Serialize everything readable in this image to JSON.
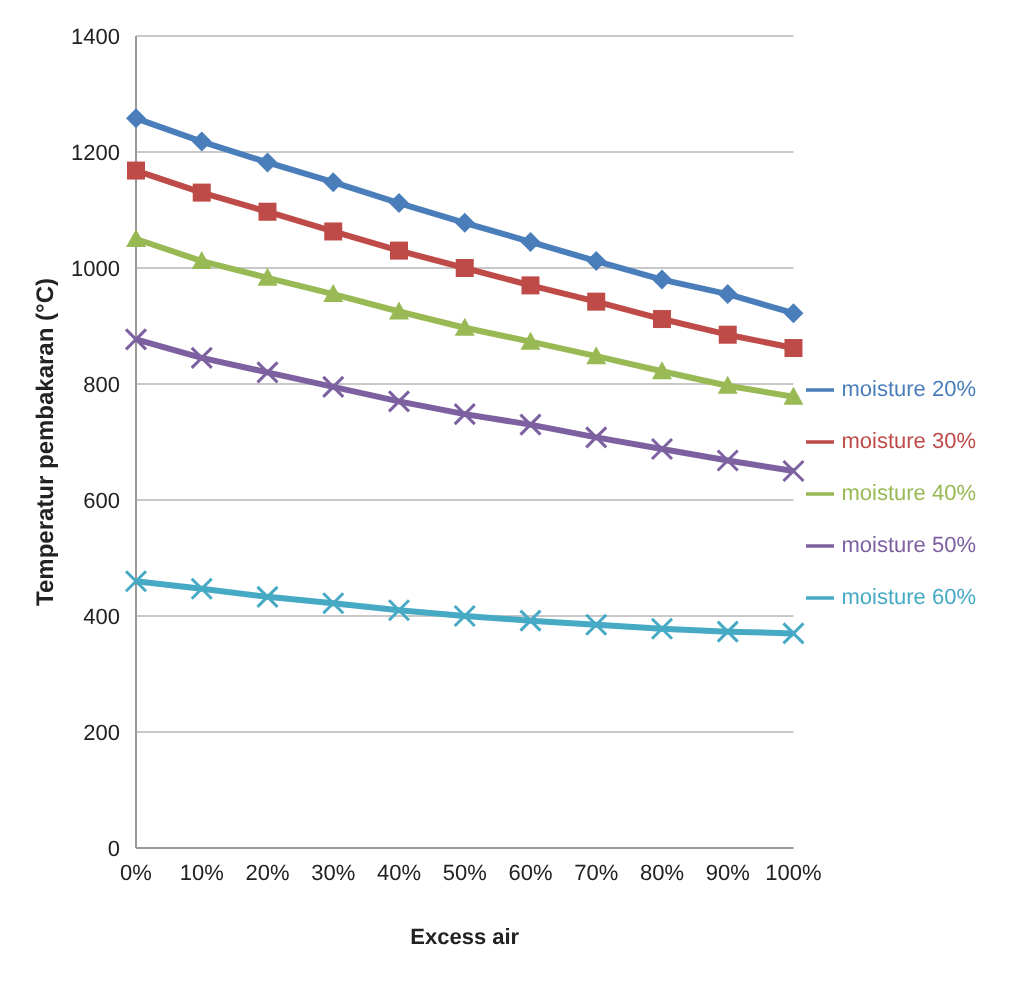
{
  "chart_data": {
    "type": "line",
    "xlabel": "Excess air",
    "ylabel": "Temperatur pembakaran (°C)",
    "categories": [
      "0%",
      "10%",
      "20%",
      "30%",
      "40%",
      "50%",
      "60%",
      "70%",
      "80%",
      "90%",
      "100%"
    ],
    "series": [
      {
        "name": "moisture 20%",
        "color": "#4a7ebb",
        "marker": "diamond",
        "values": [
          1258,
          1218,
          1182,
          1148,
          1112,
          1078,
          1045,
          1012,
          980,
          955,
          922
        ]
      },
      {
        "name": "moisture 30%",
        "color": "#be4b48",
        "marker": "square",
        "values": [
          1168,
          1130,
          1097,
          1063,
          1030,
          1000,
          970,
          942,
          912,
          885,
          862
        ]
      },
      {
        "name": "moisture 40%",
        "color": "#98b954",
        "marker": "triangle",
        "values": [
          1050,
          1012,
          983,
          955,
          925,
          897,
          873,
          848,
          822,
          797,
          778
        ]
      },
      {
        "name": "moisture 50%",
        "color": "#7d60a0",
        "marker": "cross",
        "values": [
          877,
          845,
          820,
          795,
          770,
          748,
          730,
          708,
          688,
          668,
          650
        ]
      },
      {
        "name": "moisture 60%",
        "color": "#46aac5",
        "marker": "cross",
        "values": [
          460,
          447,
          433,
          422,
          410,
          400,
          392,
          385,
          378,
          373,
          370
        ]
      }
    ],
    "ylim": [
      0,
      1400
    ],
    "yticks": [
      0,
      200,
      400,
      600,
      800,
      1000,
      1200,
      1400
    ],
    "grid": "y",
    "legend": "right",
    "line_style": "solid"
  }
}
